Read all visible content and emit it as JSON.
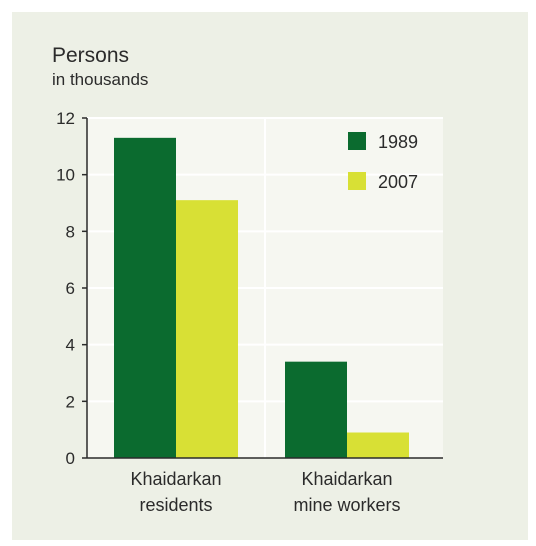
{
  "chart_data": {
    "type": "bar",
    "title": "Persons",
    "subtitle": "in thousands",
    "categories": [
      [
        "Khaidarkan",
        "residents"
      ],
      [
        "Khaidarkan",
        "mine workers"
      ]
    ],
    "series": [
      {
        "name": "1989",
        "color": "#0b6b2f",
        "values": [
          11.3,
          3.4
        ]
      },
      {
        "name": "2007",
        "color": "#d8e035",
        "values": [
          9.1,
          0.9
        ]
      }
    ],
    "ylim": [
      0,
      12
    ],
    "yticks": [
      0,
      2,
      4,
      6,
      8,
      10,
      12
    ],
    "grid": true,
    "legend_position": "top-right",
    "plot_background": "#f6f7f1",
    "grid_color": "#ffffff"
  }
}
